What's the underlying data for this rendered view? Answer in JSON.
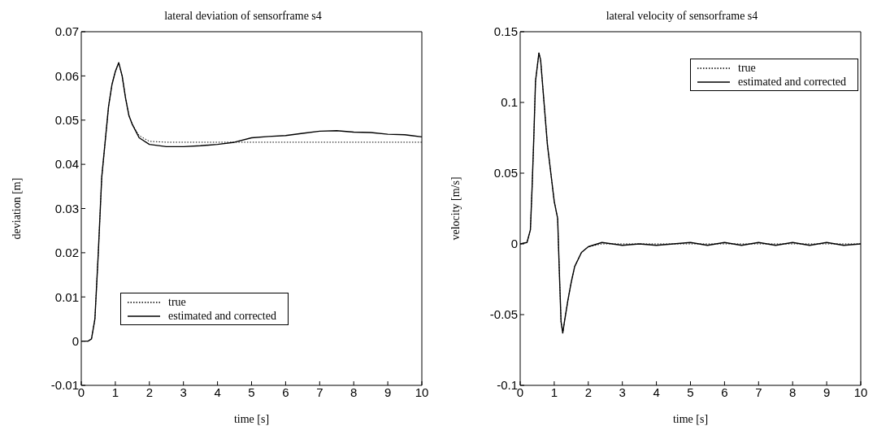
{
  "chart_data": [
    {
      "type": "line",
      "title": "lateral deviation of sensorframe s4",
      "xlabel": "time [s]",
      "ylabel": "deviation [m]",
      "xlim": [
        0,
        10
      ],
      "xticks": [
        0,
        1,
        2,
        3,
        4,
        5,
        6,
        7,
        8,
        9,
        10
      ],
      "ylim": [
        -0.01,
        0.07
      ],
      "yticks": [
        -0.01,
        0,
        0.01,
        0.02,
        0.03,
        0.04,
        0.05,
        0.06,
        0.07
      ],
      "legend": "bottom",
      "x": [
        0,
        0.2,
        0.3,
        0.4,
        0.5,
        0.6,
        0.7,
        0.8,
        0.9,
        1.0,
        1.1,
        1.2,
        1.3,
        1.4,
        1.5,
        1.7,
        2.0,
        2.5,
        3,
        3.5,
        4,
        4.5,
        5,
        5.5,
        6,
        6.5,
        7,
        7.5,
        8,
        8.5,
        9,
        9.5,
        10
      ],
      "series": [
        {
          "name": "true",
          "color": "#000000",
          "line_style": "dotted",
          "values": [
            0,
            0,
            0.0005,
            0.005,
            0.02,
            0.037,
            0.045,
            0.053,
            0.058,
            0.061,
            0.063,
            0.06,
            0.055,
            0.051,
            0.049,
            0.0465,
            0.0452,
            0.045,
            0.045,
            0.045,
            0.045,
            0.045,
            0.045,
            0.045,
            0.045,
            0.045,
            0.045,
            0.045,
            0.045,
            0.045,
            0.045,
            0.045,
            0.045
          ]
        },
        {
          "name": "estimated and corrected",
          "color": "#000000",
          "line_style": "solid",
          "values": [
            0,
            0,
            0.0005,
            0.005,
            0.02,
            0.037,
            0.045,
            0.053,
            0.058,
            0.061,
            0.063,
            0.06,
            0.055,
            0.051,
            0.049,
            0.046,
            0.0445,
            0.044,
            0.044,
            0.0442,
            0.0445,
            0.045,
            0.046,
            0.0463,
            0.0465,
            0.047,
            0.0475,
            0.0476,
            0.0473,
            0.0472,
            0.0468,
            0.0467,
            0.0462
          ]
        }
      ]
    },
    {
      "type": "line",
      "title": "lateral velocity of sensorframe s4",
      "xlabel": "time [s]",
      "ylabel": "velocity [m/s]",
      "xlim": [
        0,
        10
      ],
      "xticks": [
        0,
        1,
        2,
        3,
        4,
        5,
        6,
        7,
        8,
        9,
        10
      ],
      "ylim": [
        -0.1,
        0.15
      ],
      "yticks": [
        -0.1,
        -0.05,
        0,
        0.05,
        0.1,
        0.15
      ],
      "legend": "top right",
      "x": [
        0,
        0.2,
        0.3,
        0.35,
        0.4,
        0.45,
        0.5,
        0.55,
        0.6,
        0.7,
        0.8,
        0.9,
        1.0,
        1.1,
        1.15,
        1.2,
        1.25,
        1.3,
        1.4,
        1.5,
        1.6,
        1.8,
        2.0,
        2.4,
        3,
        3.5,
        4,
        4.5,
        5,
        5.5,
        6,
        6.5,
        7,
        7.5,
        8,
        8.5,
        9,
        9.5,
        10
      ],
      "series": [
        {
          "name": "true",
          "color": "#000000",
          "line_style": "dotted",
          "values": [
            0,
            0.001,
            0.01,
            0.04,
            0.075,
            0.115,
            0.125,
            0.135,
            0.13,
            0.1,
            0.07,
            0.05,
            0.03,
            0.018,
            -0.02,
            -0.055,
            -0.063,
            -0.055,
            -0.04,
            -0.027,
            -0.016,
            -0.006,
            -0.002,
            0,
            0,
            0,
            0,
            0,
            0,
            0,
            0,
            0,
            0,
            0,
            0,
            0,
            0,
            0,
            0
          ]
        },
        {
          "name": "estimated and corrected",
          "color": "#000000",
          "line_style": "solid",
          "values": [
            0,
            0.001,
            0.01,
            0.04,
            0.075,
            0.115,
            0.125,
            0.135,
            0.13,
            0.1,
            0.07,
            0.05,
            0.03,
            0.018,
            -0.02,
            -0.055,
            -0.063,
            -0.055,
            -0.04,
            -0.027,
            -0.016,
            -0.006,
            -0.002,
            0.001,
            -0.001,
            0,
            -0.001,
            0,
            0.001,
            -0.001,
            0.001,
            -0.001,
            0.001,
            -0.001,
            0.001,
            -0.001,
            0.001,
            -0.001,
            0
          ]
        }
      ]
    }
  ]
}
